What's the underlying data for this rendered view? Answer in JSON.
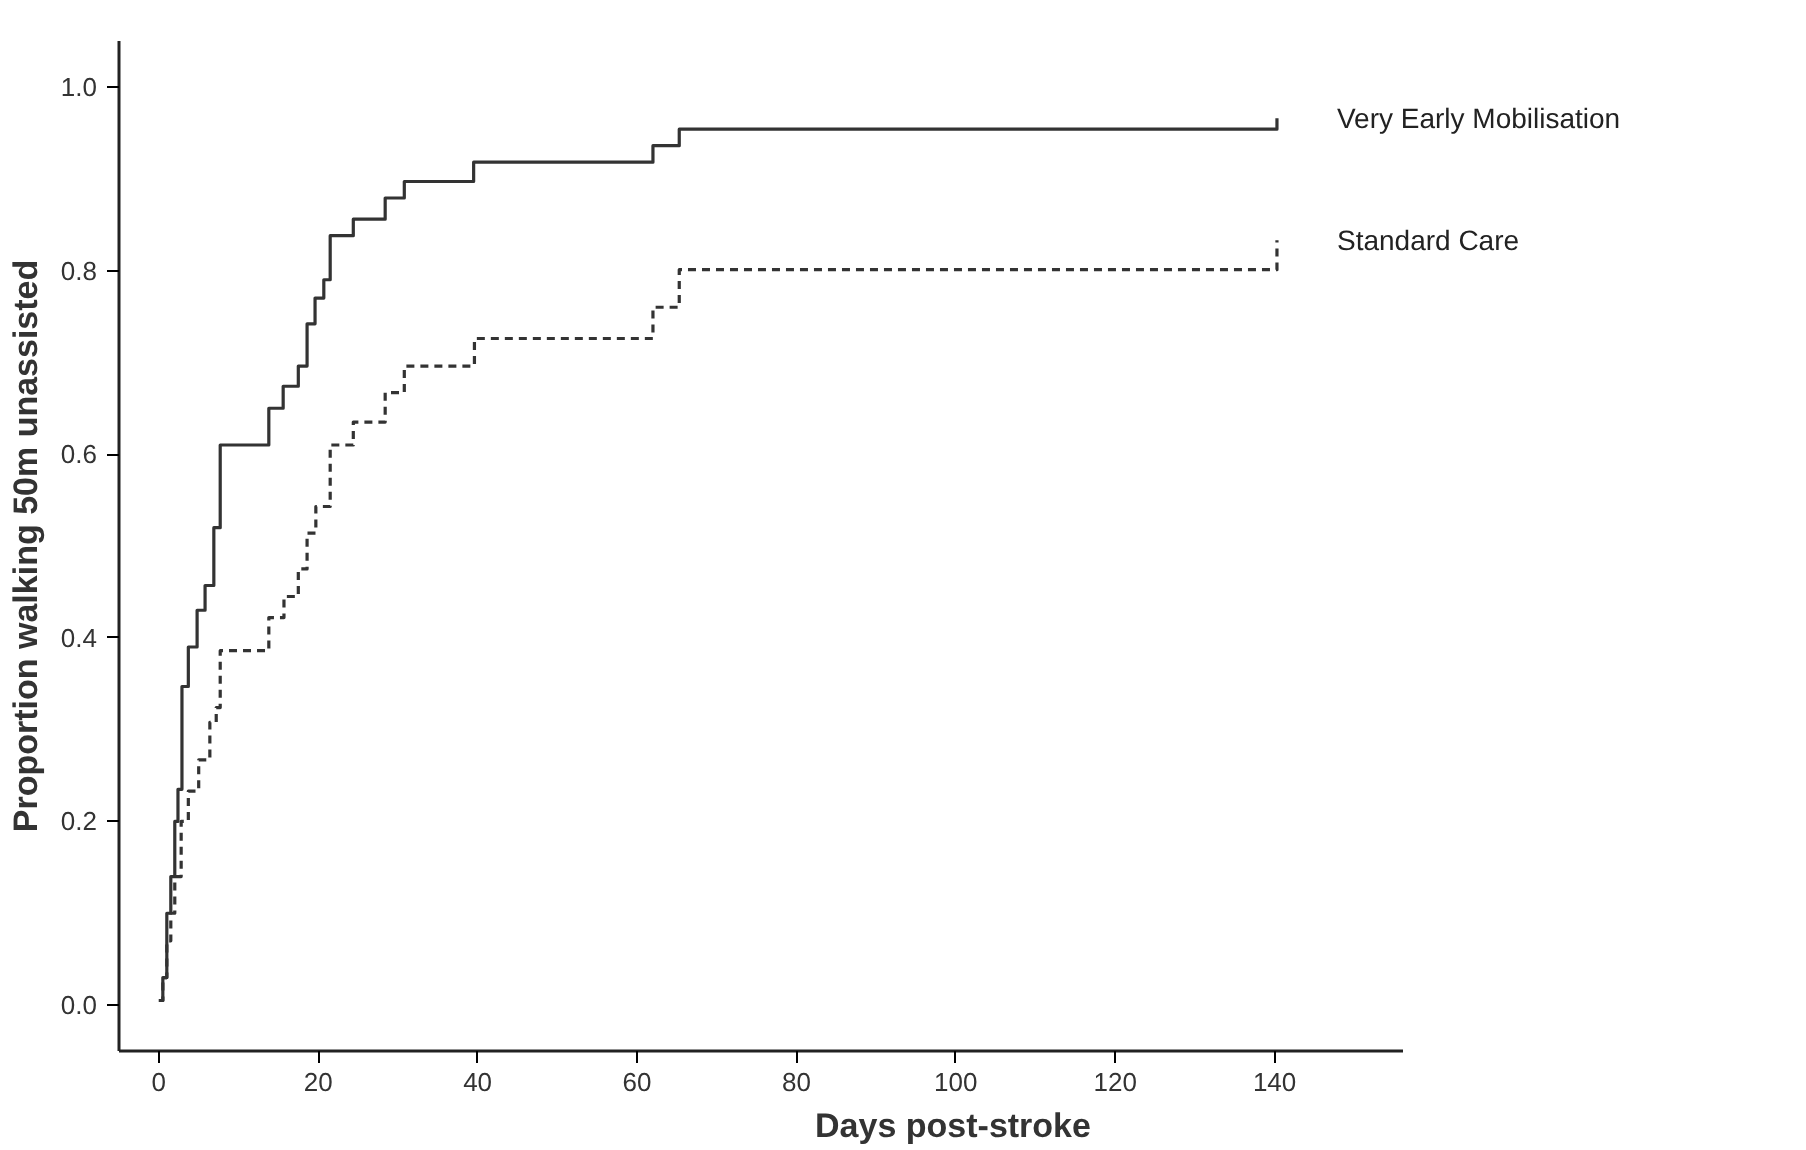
{
  "chart_data": {
    "type": "step",
    "xlabel": "Days post-stroke",
    "ylabel": "Proportion walking 50m unassisted",
    "xlim": [
      -5,
      156
    ],
    "ylim": [
      -0.05,
      1.05
    ],
    "xticks": [
      0,
      20,
      40,
      60,
      80,
      100,
      120,
      140
    ],
    "yticks": [
      {
        "value": 0,
        "label": "0.0"
      },
      {
        "value": 0.2,
        "label": "0.2"
      },
      {
        "value": 0.4,
        "label": "0.4"
      },
      {
        "value": 0.6,
        "label": "0.6"
      },
      {
        "value": 0.8,
        "label": "0.8"
      },
      {
        "value": 1,
        "label": "1.0"
      }
    ],
    "grid": false,
    "series": [
      {
        "name": "Very Early Mobilisation",
        "color": "#333333",
        "line_style": "solid",
        "x": [
          0,
          0.5,
          1,
          1.5,
          2,
          2.4,
          2.9,
          3.7,
          4.8,
          5.8,
          6.9,
          7.7,
          13.8,
          15.6,
          17.5,
          18.6,
          19.6,
          20.7,
          21.5,
          24.4,
          28.4,
          30.8,
          39.5,
          62,
          65.3,
          140.3,
          140.3
        ],
        "values": [
          0.005,
          0.03,
          0.1,
          0.14,
          0.2,
          0.235,
          0.347,
          0.39,
          0.43,
          0.457,
          0.52,
          0.61,
          0.65,
          0.674,
          0.696,
          0.742,
          0.77,
          0.79,
          0.838,
          0.856,
          0.879,
          0.897,
          0.918,
          0.936,
          0.954,
          0.954,
          0.966
        ]
      },
      {
        "name": "Standard Care",
        "color": "#333333",
        "line_style": "dashed",
        "x": [
          0,
          0.5,
          1,
          1.5,
          2,
          2.8,
          3.7,
          5,
          6.4,
          7.2,
          7.7,
          13.8,
          15.7,
          17.5,
          18.6,
          19.7,
          21.5,
          24.4,
          28.4,
          30.8,
          39.6,
          62,
          65.3,
          140.3,
          140.3
        ],
        "values": [
          0.005,
          0.03,
          0.07,
          0.1,
          0.14,
          0.2,
          0.233,
          0.267,
          0.308,
          0.324,
          0.386,
          0.422,
          0.445,
          0.475,
          0.514,
          0.543,
          0.61,
          0.635,
          0.667,
          0.696,
          0.726,
          0.76,
          0.801,
          0.801,
          0.833
        ]
      }
    ]
  }
}
